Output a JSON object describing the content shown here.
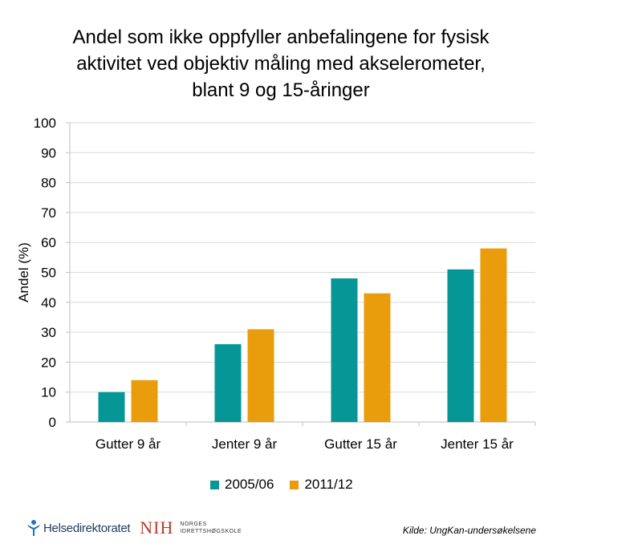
{
  "chart_data": {
    "type": "bar",
    "title": [
      "Andel som ikke oppfyller anbefalingene for fysisk",
      "aktivitet ved objektiv måling med akselerometer,",
      "blant 9 og 15-åringer"
    ],
    "xlabel": "",
    "ylabel": "Andel (%)",
    "ylim": [
      0,
      100
    ],
    "yticks": [
      0,
      10,
      20,
      30,
      40,
      50,
      60,
      70,
      80,
      90,
      100
    ],
    "grid": true,
    "legend_position": "bottom",
    "categories": [
      "Gutter 9 år",
      "Jenter 9 år",
      "Gutter 15 år",
      "Jenter 15 år"
    ],
    "series": [
      {
        "name": "2005/06",
        "color": "#069696",
        "values": [
          10,
          26,
          48,
          51
        ]
      },
      {
        "name": "2011/12",
        "color": "#E99C0C",
        "values": [
          14,
          31,
          43,
          58
        ]
      }
    ]
  },
  "footer": {
    "logo1": "Helsedirektoratet",
    "logo2_mark": "NIH",
    "logo2_line1": "NORGES",
    "logo2_line2": "IDRETTSHØGSKOLE",
    "source": "Kilde: UngKan-undersøkelsene"
  }
}
